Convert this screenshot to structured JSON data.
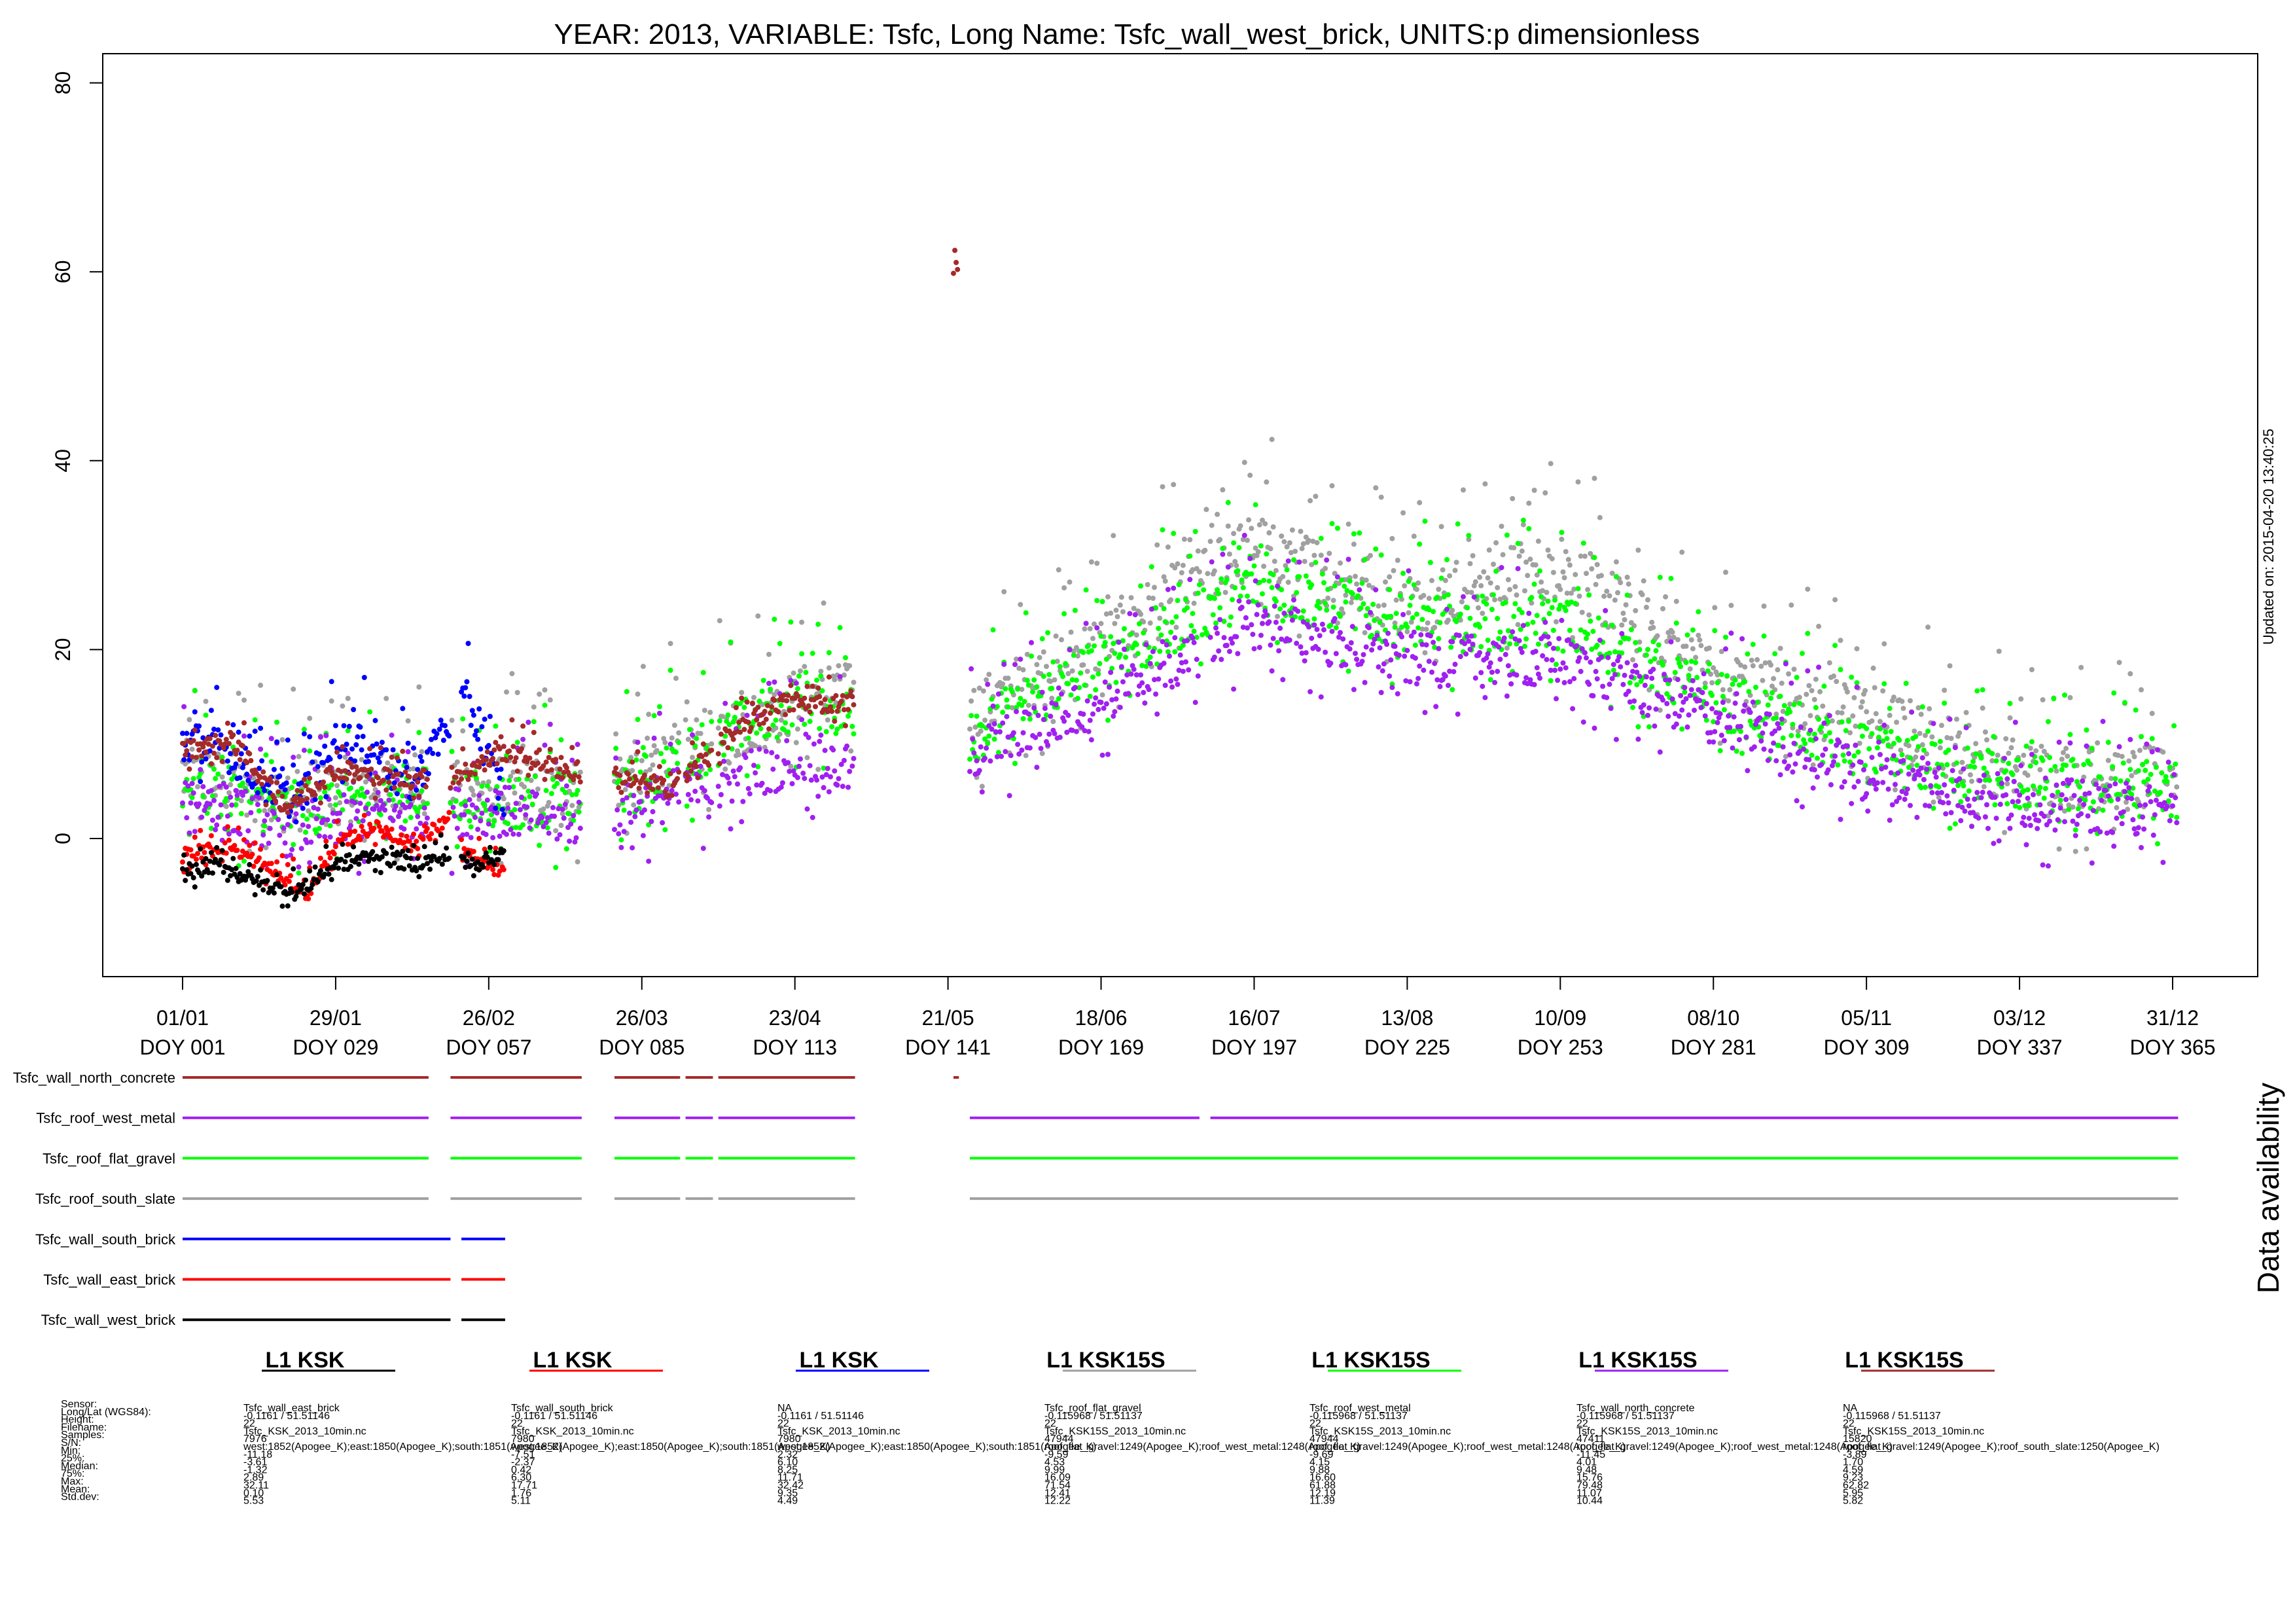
{
  "chart_data": {
    "type": "scatter",
    "title": "YEAR: 2013, VARIABLE: Tsfc, Long Name: Tsfc_wall_west_brick, UNITS:p dimensionless",
    "ylim": [
      -15,
      80
    ],
    "y_ticks": [
      0,
      20,
      40,
      60,
      80
    ],
    "x_ticks": [
      {
        "date": "01/01",
        "doy": "DOY 001",
        "day": 1
      },
      {
        "date": "29/01",
        "doy": "DOY 029",
        "day": 29
      },
      {
        "date": "26/02",
        "doy": "DOY 057",
        "day": 57
      },
      {
        "date": "26/03",
        "doy": "DOY 085",
        "day": 85
      },
      {
        "date": "23/04",
        "doy": "DOY 113",
        "day": 113
      },
      {
        "date": "21/05",
        "doy": "DOY 141",
        "day": 141
      },
      {
        "date": "18/06",
        "doy": "DOY 169",
        "day": 169
      },
      {
        "date": "16/07",
        "doy": "DOY 197",
        "day": 197
      },
      {
        "date": "13/08",
        "doy": "DOY 225",
        "day": 225
      },
      {
        "date": "10/09",
        "doy": "DOY 253",
        "day": 253
      },
      {
        "date": "08/10",
        "doy": "DOY 281",
        "day": 281
      },
      {
        "date": "05/11",
        "doy": "DOY 309",
        "day": 309
      },
      {
        "date": "03/12",
        "doy": "DOY 337",
        "day": 337
      },
      {
        "date": "31/12",
        "doy": "DOY 365",
        "day": 365
      }
    ],
    "updated": "Updated on: 2015-04-20 13:40:25",
    "availability_title": "Data availability",
    "series": [
      {
        "name": "Tsfc_wall_west_brick",
        "color": "#000000",
        "segments": [
          [
            1,
            50
          ],
          [
            52,
            60
          ]
        ],
        "profile": [
          [
            1,
            -4
          ],
          [
            8,
            -3
          ],
          [
            15,
            -5
          ],
          [
            22,
            -6
          ],
          [
            29,
            -3
          ],
          [
            36,
            -2
          ],
          [
            43,
            -3
          ],
          [
            50,
            -2
          ],
          [
            53,
            -3
          ],
          [
            60,
            -2
          ]
        ],
        "spread": 3
      },
      {
        "name": "Tsfc_wall_east_brick",
        "color": "#ff0000",
        "segments": [
          [
            1,
            50
          ],
          [
            52,
            60
          ]
        ],
        "profile": [
          [
            1,
            -2
          ],
          [
            10,
            -1
          ],
          [
            18,
            -4
          ],
          [
            24,
            -6
          ],
          [
            29,
            -1
          ],
          [
            36,
            1
          ],
          [
            43,
            -1
          ],
          [
            50,
            2
          ],
          [
            53,
            -2
          ],
          [
            60,
            -4
          ]
        ],
        "spread": 3
      },
      {
        "name": "Tsfc_wall_south_brick",
        "color": "#0000ff",
        "segments": [
          [
            1,
            50
          ],
          [
            52,
            60
          ]
        ],
        "profile": [
          [
            1,
            10
          ],
          [
            8,
            9
          ],
          [
            15,
            6
          ],
          [
            22,
            3
          ],
          [
            29,
            10
          ],
          [
            36,
            9
          ],
          [
            43,
            5
          ],
          [
            50,
            12
          ],
          [
            53,
            14
          ],
          [
            60,
            3
          ]
        ],
        "spread": 8
      },
      {
        "name": "Tsfc_roof_south_slate",
        "color": "#a0a0a0",
        "segments": [
          [
            1,
            46
          ],
          [
            50,
            74
          ],
          [
            80,
            92
          ],
          [
            93,
            98
          ],
          [
            99,
            124
          ],
          [
            145,
            366
          ]
        ],
        "profile": [
          [
            1,
            6
          ],
          [
            20,
            3
          ],
          [
            40,
            5
          ],
          [
            60,
            4
          ],
          [
            75,
            4
          ],
          [
            85,
            6
          ],
          [
            100,
            10
          ],
          [
            115,
            14
          ],
          [
            124,
            14
          ],
          [
            145,
            12
          ],
          [
            170,
            20
          ],
          [
            197,
            30
          ],
          [
            225,
            24
          ],
          [
            253,
            28
          ],
          [
            281,
            16
          ],
          [
            309,
            12
          ],
          [
            337,
            6
          ],
          [
            366,
            5
          ]
        ],
        "spread": 14
      },
      {
        "name": "Tsfc_roof_flat_gravel",
        "color": "#00ff00",
        "segments": [
          [
            1,
            46
          ],
          [
            50,
            74
          ],
          [
            80,
            92
          ],
          [
            93,
            98
          ],
          [
            99,
            124
          ],
          [
            145,
            366
          ]
        ],
        "profile": [
          [
            1,
            5
          ],
          [
            20,
            2
          ],
          [
            40,
            4
          ],
          [
            60,
            3
          ],
          [
            75,
            3
          ],
          [
            85,
            5
          ],
          [
            100,
            10
          ],
          [
            115,
            14
          ],
          [
            124,
            12
          ],
          [
            145,
            10
          ],
          [
            170,
            18
          ],
          [
            197,
            26
          ],
          [
            225,
            22
          ],
          [
            253,
            22
          ],
          [
            281,
            14
          ],
          [
            309,
            8
          ],
          [
            337,
            5
          ],
          [
            366,
            4
          ]
        ],
        "spread": 12
      },
      {
        "name": "Tsfc_roof_west_metal",
        "color": "#a020f0",
        "segments": [
          [
            1,
            46
          ],
          [
            50,
            74
          ],
          [
            80,
            92
          ],
          [
            93,
            98
          ],
          [
            99,
            124
          ],
          [
            145,
            187
          ],
          [
            189,
            366
          ]
        ],
        "profile": [
          [
            1,
            4
          ],
          [
            20,
            0
          ],
          [
            40,
            2
          ],
          [
            60,
            2
          ],
          [
            75,
            1
          ],
          [
            85,
            3
          ],
          [
            100,
            5
          ],
          [
            115,
            8
          ],
          [
            124,
            6
          ],
          [
            145,
            8
          ],
          [
            170,
            14
          ],
          [
            197,
            22
          ],
          [
            225,
            18
          ],
          [
            253,
            18
          ],
          [
            281,
            12
          ],
          [
            309,
            6
          ],
          [
            337,
            3
          ],
          [
            366,
            2
          ]
        ],
        "spread": 11
      },
      {
        "name": "Tsfc_wall_north_concrete",
        "color": "#a52a2a",
        "segments": [
          [
            1,
            46
          ],
          [
            50,
            74
          ],
          [
            80,
            92
          ],
          [
            93,
            98
          ],
          [
            99,
            124
          ],
          [
            142,
            143
          ]
        ],
        "profile": [
          [
            1,
            9
          ],
          [
            10,
            10
          ],
          [
            20,
            3
          ],
          [
            29,
            7
          ],
          [
            40,
            6
          ],
          [
            50,
            6
          ],
          [
            60,
            9
          ],
          [
            70,
            7
          ],
          [
            80,
            6
          ],
          [
            90,
            5
          ],
          [
            100,
            10
          ],
          [
            110,
            14
          ],
          [
            124,
            14
          ],
          [
            142,
            60
          ],
          [
            143,
            60
          ]
        ],
        "spread": 4
      }
    ]
  },
  "info": {
    "row_labels": [
      "Sensor:",
      "Long/Lat (WGS84):",
      "Height:",
      "Filename:",
      "Samples:",
      "S/N:",
      "Min:",
      "25%:",
      "Median:",
      "75%:",
      "Max:",
      "Mean:",
      "Std.dev:"
    ],
    "columns": [
      {
        "header": "L1 KSK",
        "color": "#000000",
        "values": [
          "Tsfc_wall_east_brick",
          "-0.1161 / 51.51146",
          "22",
          "Tsfc_KSK_2013_10min.nc",
          "7976",
          "west:1852(Apogee_K);east:1850(Apogee_K);south:1851(Apogee_K)",
          "-11.18",
          "-3.61",
          "-1.32",
          "2.89",
          "32.11",
          "0.10",
          "5.53"
        ]
      },
      {
        "header": "L1 KSK",
        "color": "#ff0000",
        "values": [
          "Tsfc_wall_south_brick",
          "-0.1161 / 51.51146",
          "22",
          "Tsfc_KSK_2013_10min.nc",
          "7980",
          "west:1852(Apogee_K);east:1850(Apogee_K);south:1851(Apogee_K)",
          "-7.51",
          "-2.37",
          "0.42",
          "6.30",
          "17.71",
          "1.76",
          "5.11"
        ]
      },
      {
        "header": "L1 KSK",
        "color": "#0000ff",
        "values": [
          "NA",
          "-0.1161 / 51.51146",
          "22",
          "Tsfc_KSK_2013_10min.nc",
          "7980",
          "west:1852(Apogee_K);east:1850(Apogee_K);south:1851(Apogee_K)",
          "2.32",
          "6.10",
          "8.25",
          "11.71",
          "32.42",
          "9.35",
          "4.49"
        ]
      },
      {
        "header": "L1 KSK15S",
        "color": "#a0a0a0",
        "values": [
          "Tsfc_roof_flat_gravel",
          "-0.115968 / 51.51137",
          "22",
          "Tsfc_KSK15S_2013_10min.nc",
          "47944",
          "roof_flat_gravel:1249(Apogee_K);roof_west_metal:1248(Apogee_K)",
          "-9.59",
          "4.53",
          "9.99",
          "16.09",
          "71.54",
          "12.41",
          "12.22"
        ]
      },
      {
        "header": "L1 KSK15S",
        "color": "#00ff00",
        "values": [
          "Tsfc_roof_west_metal",
          "-0.115968 / 51.51137",
          "22",
          "Tsfc_KSK15S_2013_10min.nc",
          "47944",
          "roof_flat_gravel:1249(Apogee_K);roof_west_metal:1248(Apogee_K)",
          "-9.69",
          "4.15",
          "9.88",
          "16.60",
          "61.88",
          "12.19",
          "11.39"
        ]
      },
      {
        "header": "L1 KSK15S",
        "color": "#a020f0",
        "values": [
          "Tsfc_wall_north_concrete",
          "-0.115968 / 51.51137",
          "22",
          "Tsfc_KSK15S_2013_10min.nc",
          "47411",
          "roof_flat_gravel:1249(Apogee_K);roof_west_metal:1248(Apogee_K)",
          "-11.45",
          "4.01",
          "9.48",
          "15.76",
          "79.48",
          "11.07",
          "10.44"
        ]
      },
      {
        "header": "L1 KSK15S",
        "color": "#a52a2a",
        "values": [
          "NA",
          "-0.115968 / 51.51137",
          "22",
          "Tsfc_KSK15S_2013_10min.nc",
          "15820",
          "roof_flat_gravel:1249(Apogee_K);roof_south_slate:1250(Apogee_K)",
          "-3.89",
          "1.70",
          "4.59",
          "9.23",
          "62.82",
          "5.95",
          "5.82"
        ]
      }
    ]
  }
}
